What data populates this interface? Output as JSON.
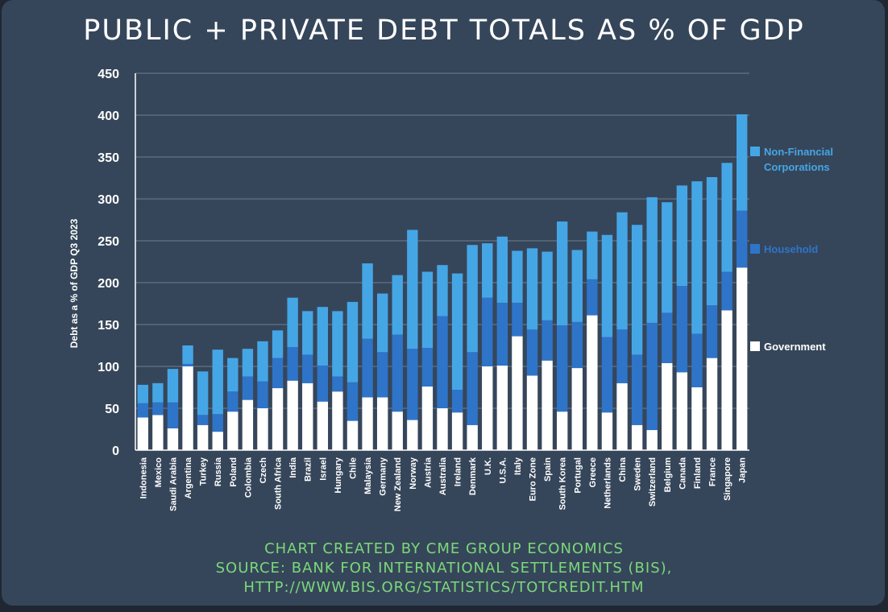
{
  "title": "PUBLIC + PRIVATE DEBT TOTALS AS % OF GDP",
  "footer": {
    "line1": "CHART CREATED BY CME GROUP ECONOMICS",
    "line2": "SOURCE: BANK FOR INTERNATIONAL SETTLEMENTS (BIS),",
    "line3": "HTTP://WWW.BIS.ORG/STATISTICS/TOTCREDIT.HTM"
  },
  "colors": {
    "background": "#36465a",
    "government": "#ffffff",
    "household": "#2e74c9",
    "corporations": "#45a6e6",
    "footer_text": "#7bd87a"
  },
  "chart_data": {
    "type": "bar",
    "stacked": true,
    "ylabel": "Debt as a % of GDP Q3 2023",
    "ylim": [
      0,
      450
    ],
    "yticks": [
      0,
      50,
      100,
      150,
      200,
      250,
      300,
      350,
      400,
      450
    ],
    "grid": true,
    "legend_position": "right",
    "categories": [
      "Indonesia",
      "Mexico",
      "Saudi Arabia",
      "Argentina",
      "Turkey",
      "Russia",
      "Poland",
      "Colombia",
      "Czech",
      "South Africa",
      "India",
      "Brazil",
      "Israel",
      "Hungary",
      "Chile",
      "Malaysia",
      "Germany",
      "New Zealand",
      "Norway",
      "Austria",
      "Australia",
      "Ireland",
      "Denmark",
      "U.K.",
      "U.S.A.",
      "Italy",
      "Euro Zone",
      "Spain",
      "South Korea",
      "Portugal",
      "Greece",
      "Netherlands",
      "China",
      "Sweden",
      "Switzerland",
      "Belgium",
      "Canada",
      "Finland",
      "France",
      "Singapore",
      "Japan"
    ],
    "series": [
      {
        "name": "Government",
        "values": [
          39,
          42,
          26,
          100,
          30,
          22,
          46,
          60,
          50,
          74,
          83,
          80,
          58,
          70,
          35,
          63,
          63,
          46,
          36,
          76,
          50,
          45,
          30,
          100,
          101,
          136,
          89,
          107,
          46,
          98,
          161,
          45,
          80,
          30,
          24,
          104,
          93,
          75,
          110,
          167,
          218
        ]
      },
      {
        "name": "Household",
        "values": [
          17,
          15,
          31,
          3,
          12,
          21,
          24,
          28,
          32,
          36,
          40,
          34,
          43,
          18,
          46,
          70,
          54,
          92,
          85,
          46,
          110,
          27,
          87,
          82,
          75,
          40,
          55,
          48,
          103,
          55,
          43,
          90,
          64,
          84,
          128,
          60,
          103,
          64,
          63,
          46,
          68
        ]
      },
      {
        "name": "Non-Financial Corporations",
        "values": [
          22,
          23,
          40,
          22,
          52,
          77,
          40,
          33,
          48,
          33,
          59,
          52,
          70,
          78,
          96,
          90,
          70,
          71,
          142,
          91,
          61,
          139,
          128,
          65,
          79,
          62,
          97,
          82,
          124,
          86,
          57,
          122,
          140,
          155,
          150,
          132,
          120,
          182,
          153,
          130,
          115
        ]
      }
    ]
  }
}
